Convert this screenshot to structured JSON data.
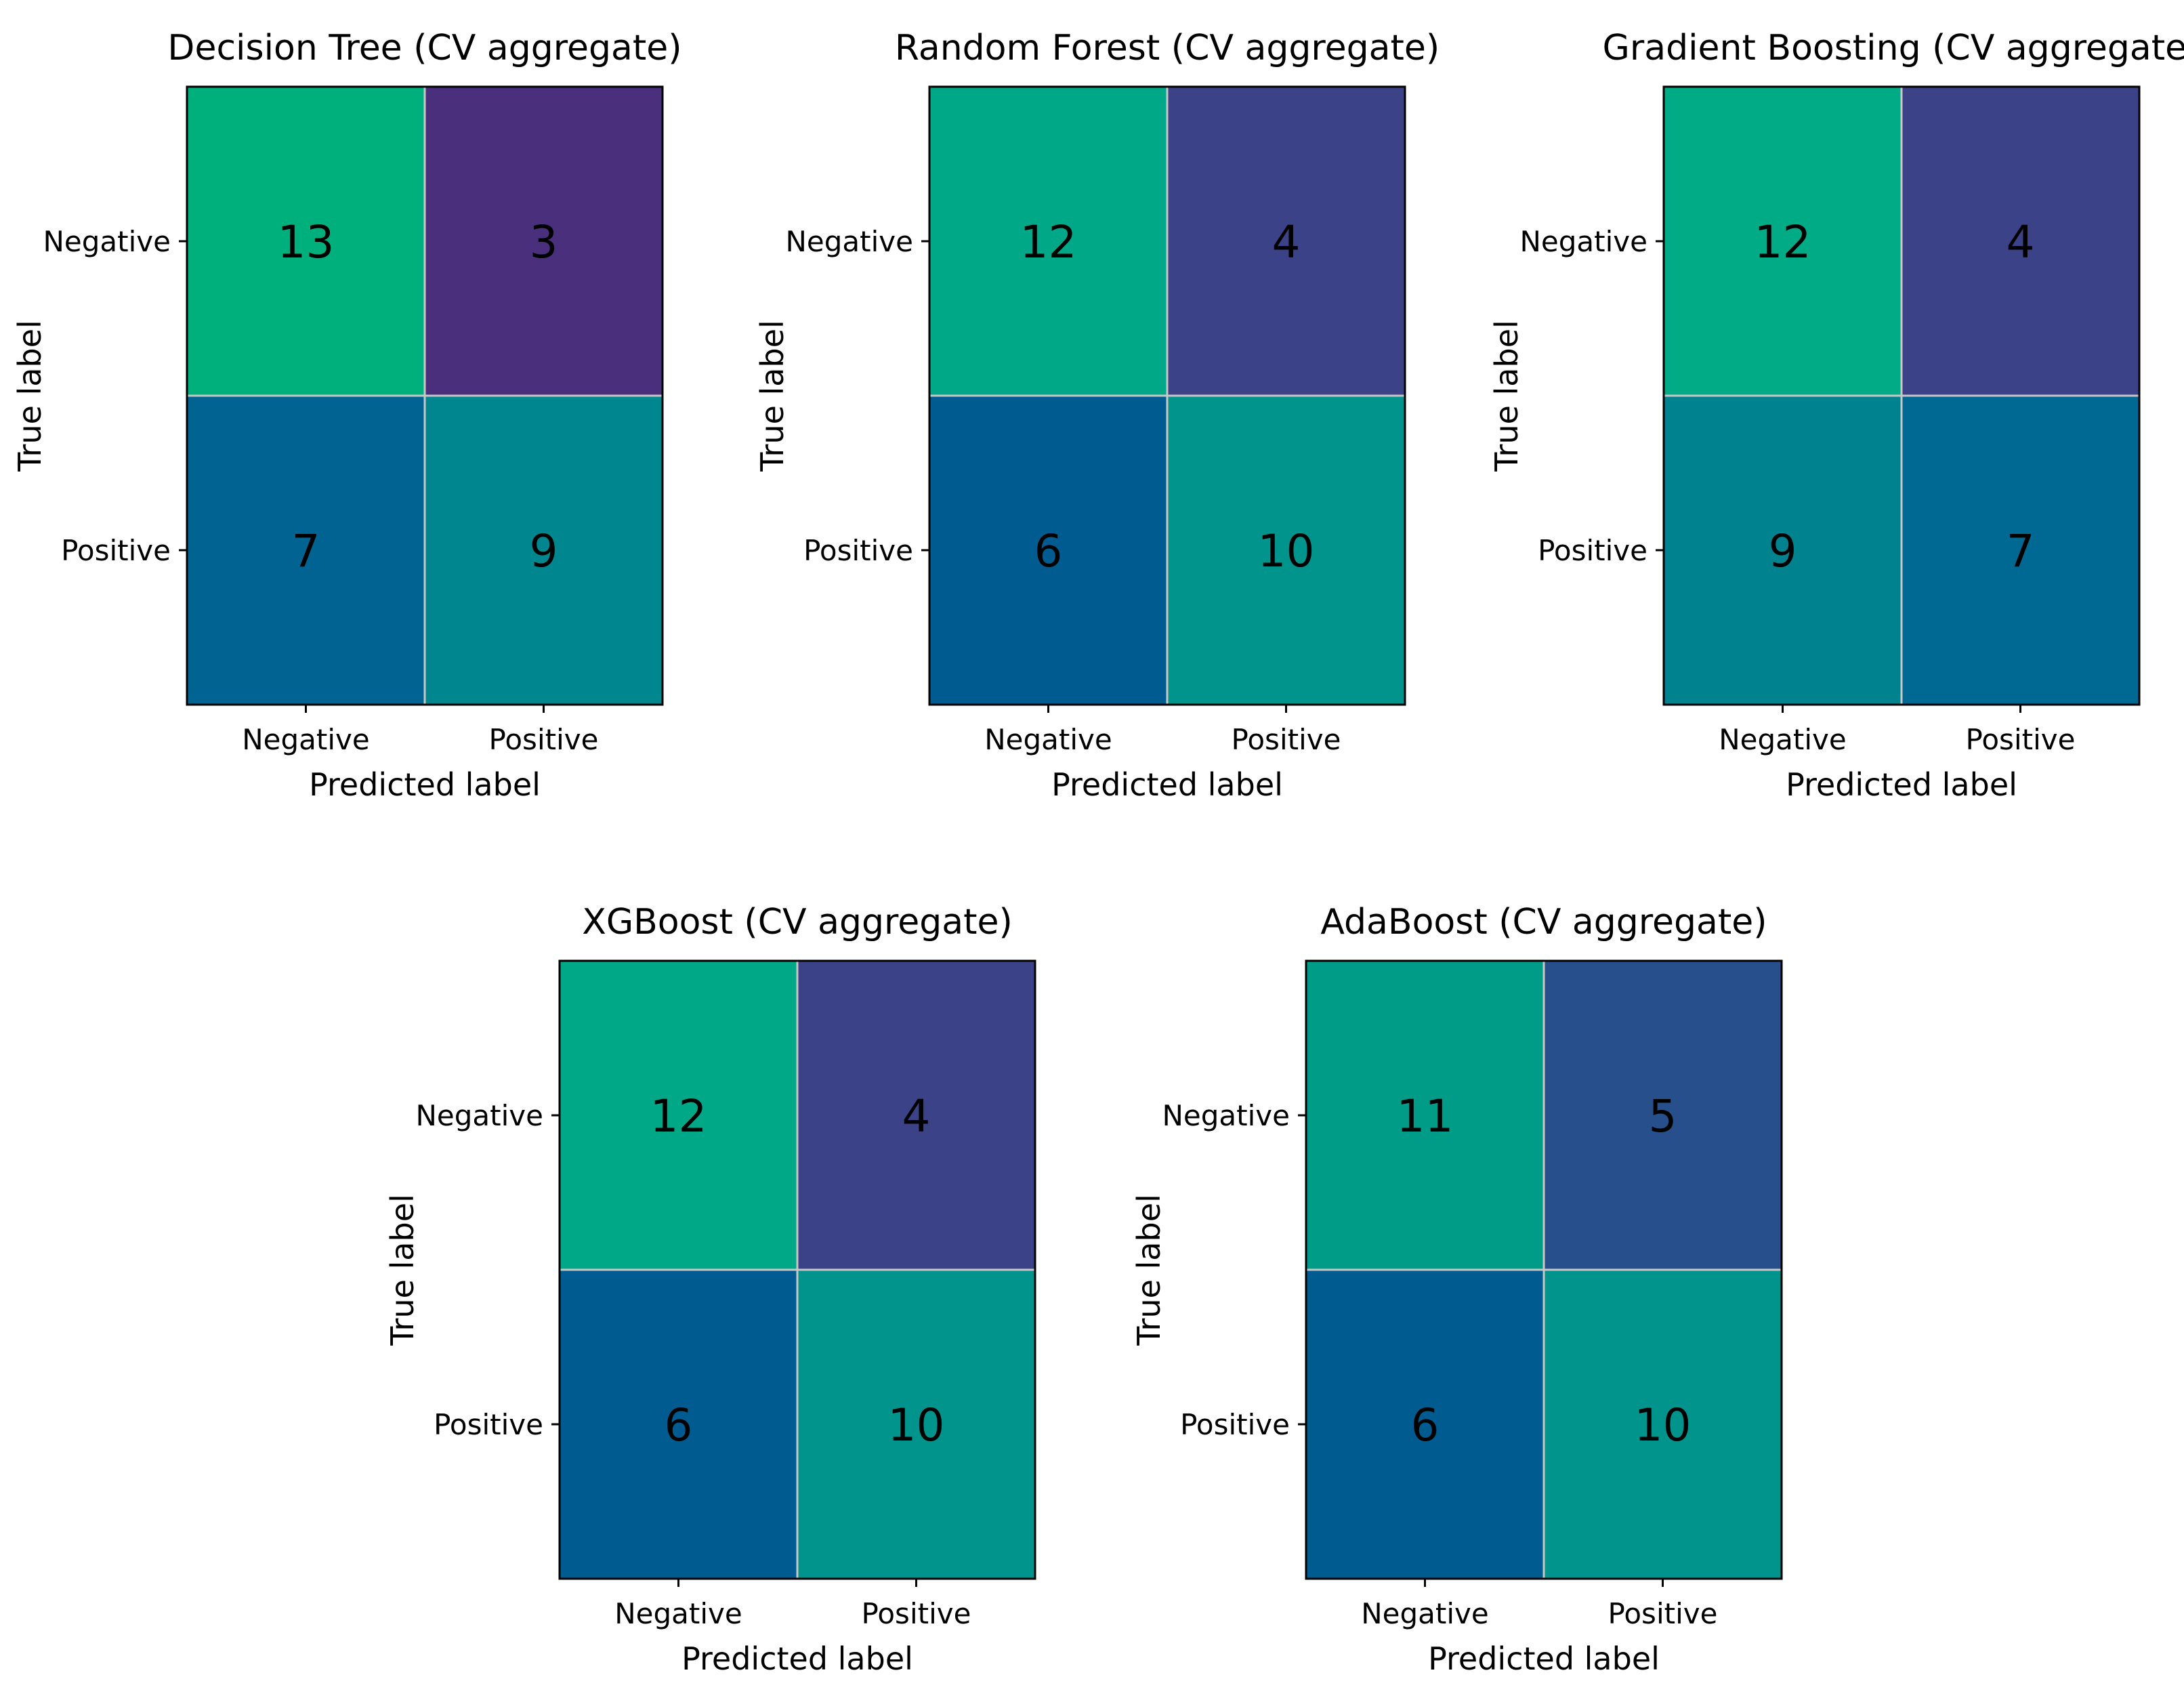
{
  "chart_data": [
    {
      "type": "heatmap",
      "title": "Decision Tree (CV aggregate)",
      "xlabel": "Predicted label",
      "ylabel": "True label",
      "x_categories": [
        "Negative",
        "Positive"
      ],
      "y_categories": [
        "Negative",
        "Positive"
      ],
      "values": [
        [
          13,
          3
        ],
        [
          7,
          9
        ]
      ],
      "cell_colors": [
        [
          "#00b07c",
          "#4a2f7d"
        ],
        [
          "#006391",
          "#00868e"
        ]
      ],
      "grid": false
    },
    {
      "type": "heatmap",
      "title": "Random Forest (CV aggregate)",
      "xlabel": "Predicted label",
      "ylabel": "True label",
      "x_categories": [
        "Negative",
        "Positive"
      ],
      "y_categories": [
        "Negative",
        "Positive"
      ],
      "values": [
        [
          12,
          4
        ],
        [
          6,
          10
        ]
      ],
      "cell_colors": [
        [
          "#00a888",
          "#3c4287"
        ],
        [
          "#005b90",
          "#00948c"
        ]
      ],
      "grid": false
    },
    {
      "type": "heatmap",
      "title": "Gradient Boosting (CV aggregate)",
      "xlabel": "Predicted label",
      "ylabel": "True label",
      "x_categories": [
        "Negative",
        "Positive"
      ],
      "y_categories": [
        "Negative",
        "Positive"
      ],
      "values": [
        [
          12,
          4
        ],
        [
          9,
          7
        ]
      ],
      "cell_colors": [
        [
          "#00ab86",
          "#3c4287"
        ],
        [
          "#00828f",
          "#006993"
        ]
      ],
      "grid": false
    },
    {
      "type": "heatmap",
      "title": "XGBoost (CV aggregate)",
      "xlabel": "Predicted label",
      "ylabel": "True label",
      "x_categories": [
        "Negative",
        "Positive"
      ],
      "y_categories": [
        "Negative",
        "Positive"
      ],
      "values": [
        [
          12,
          4
        ],
        [
          6,
          10
        ]
      ],
      "cell_colors": [
        [
          "#00a888",
          "#3c4287"
        ],
        [
          "#005b90",
          "#00948c"
        ]
      ],
      "grid": false
    },
    {
      "type": "heatmap",
      "title": "AdaBoost (CV aggregate)",
      "xlabel": "Predicted label",
      "ylabel": "True label",
      "x_categories": [
        "Negative",
        "Positive"
      ],
      "y_categories": [
        "Negative",
        "Positive"
      ],
      "values": [
        [
          11,
          5
        ],
        [
          6,
          10
        ]
      ],
      "cell_colors": [
        [
          "#009c88",
          "#274f8b"
        ],
        [
          "#005b90",
          "#00948c"
        ]
      ],
      "grid": false
    }
  ]
}
